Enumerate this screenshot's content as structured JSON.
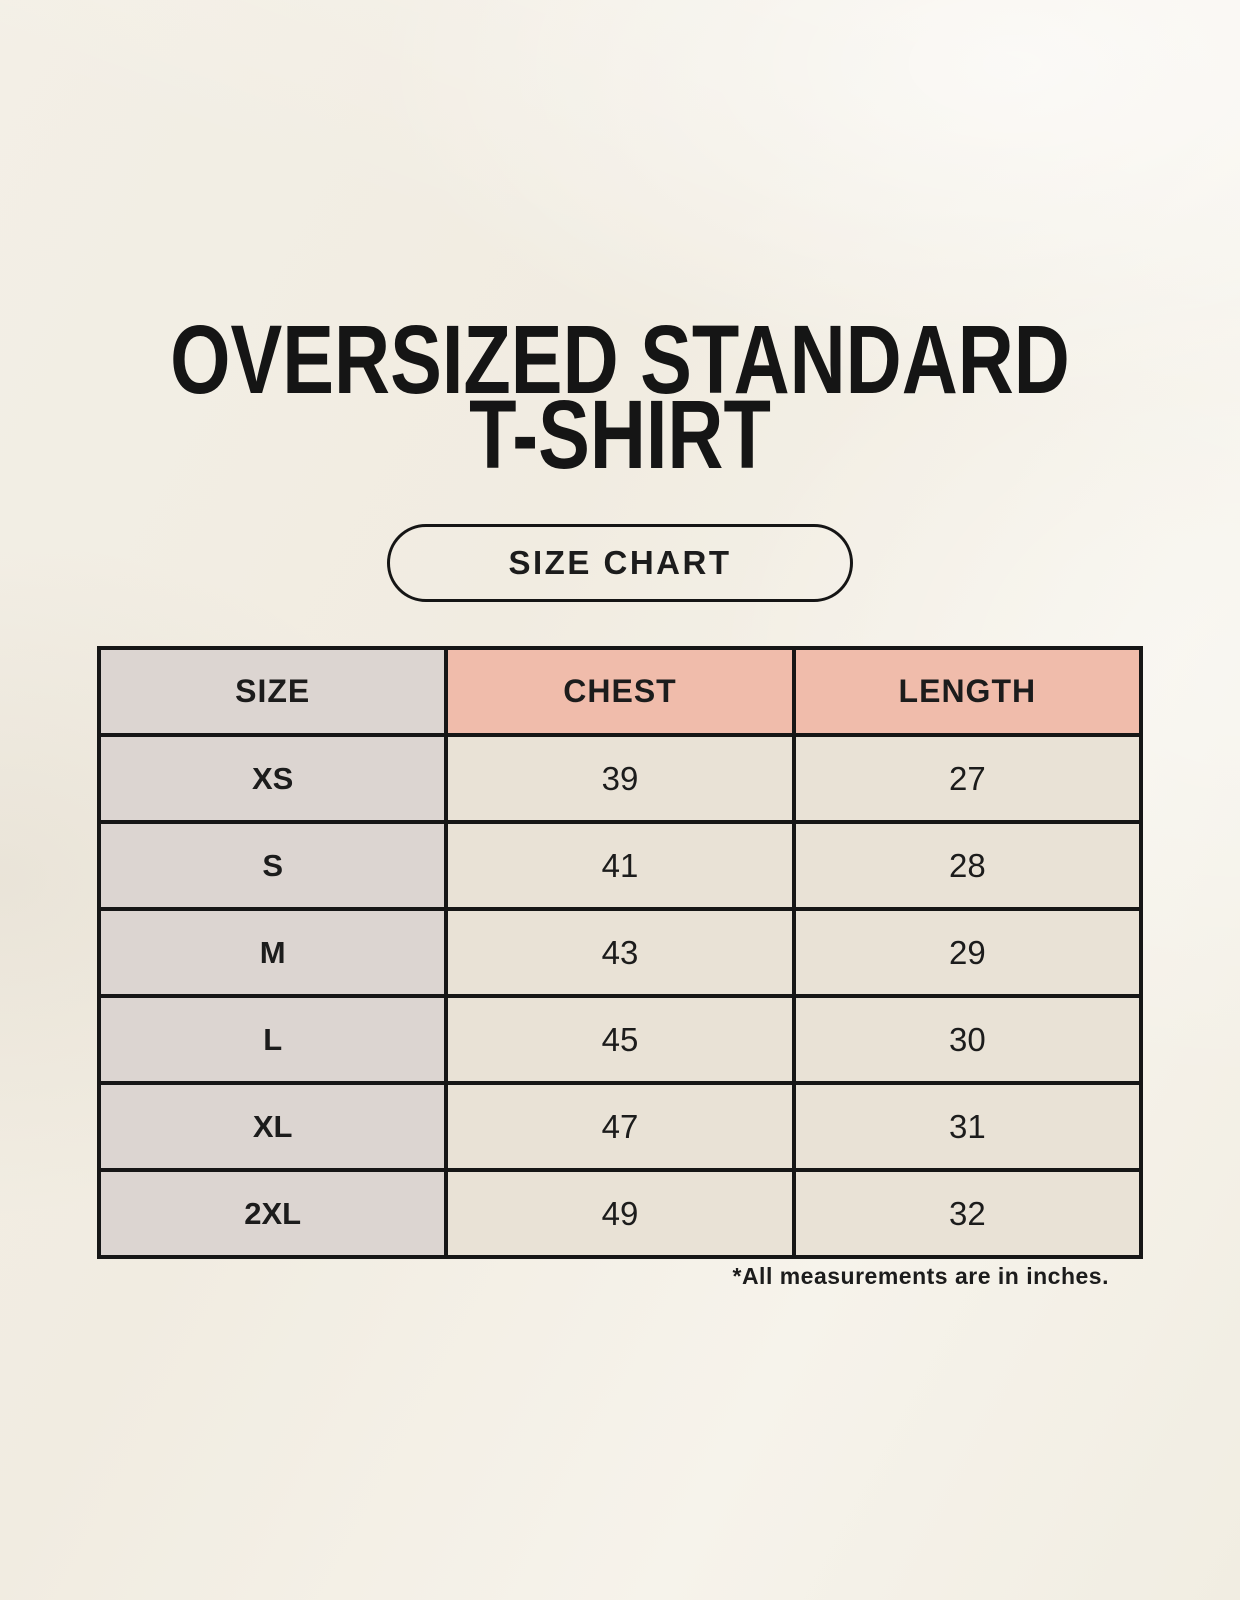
{
  "header": {
    "title_line1": "OVERSIZED STANDARD",
    "title_line2": "T-SHIRT",
    "badge_label": "SIZE CHART"
  },
  "footer": {
    "note": "*All measurements are in inches."
  },
  "colors": {
    "page_bg": "#f1ede2",
    "size_column_bg": "#dcd5d1",
    "measure_header_bg": "#f0bcab",
    "value_cell_bg": "#e9e2d6",
    "border": "#161616",
    "text": "#1c1c1c"
  },
  "chart_data": {
    "type": "table",
    "title": "OVERSIZED STANDARD T-SHIRT",
    "subtitle": "SIZE CHART",
    "columns": [
      "SIZE",
      "CHEST",
      "LENGTH"
    ],
    "rows": [
      [
        "XS",
        39,
        27
      ],
      [
        "S",
        41,
        28
      ],
      [
        "M",
        43,
        29
      ],
      [
        "L",
        45,
        30
      ],
      [
        "XL",
        47,
        31
      ],
      [
        "2XL",
        49,
        32
      ]
    ],
    "units": "inches",
    "footnote": "*All measurements are in inches."
  }
}
